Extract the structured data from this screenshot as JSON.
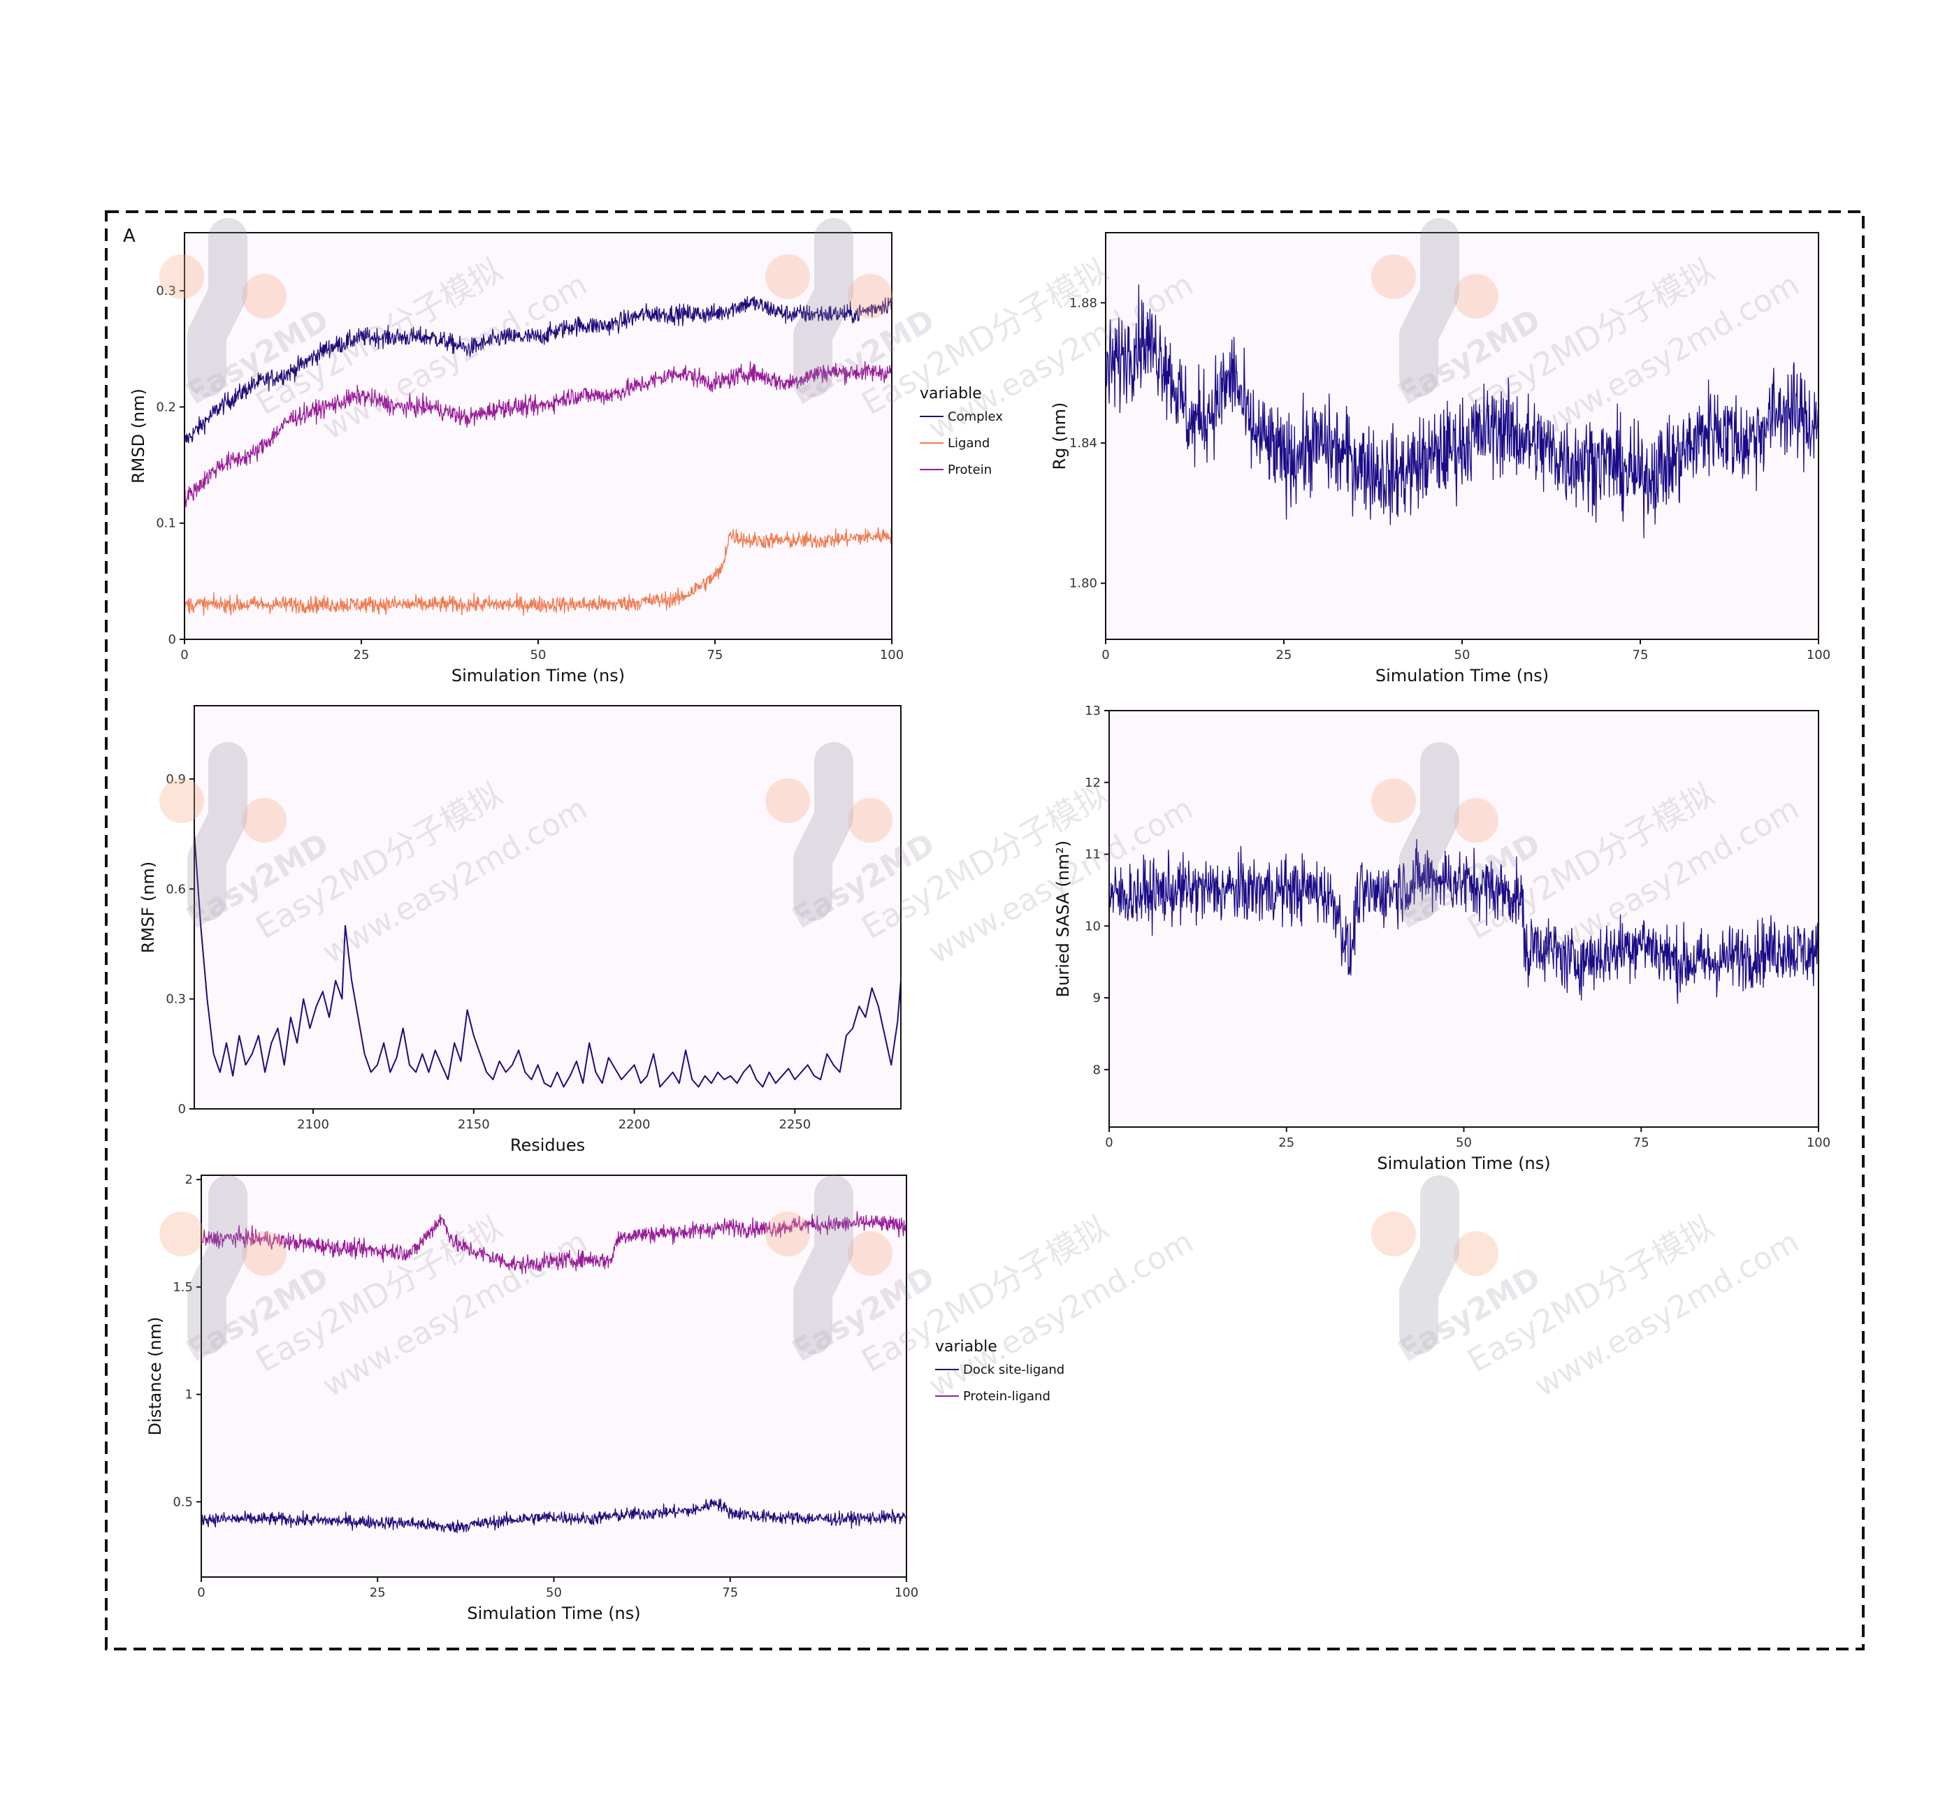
{
  "panel_label": "A",
  "watermark": {
    "brand": "Easy2MD",
    "line1": "Easy2MD分子模拟",
    "line2": "www.easy2md.com"
  },
  "colors": {
    "complex": "#1f0b7a",
    "ligand": "#f07a4e",
    "protein": "#9a1c9a",
    "series_main": "#1a0c86",
    "dashed_border": "#111111"
  },
  "chart_data": [
    {
      "id": "rmsd",
      "type": "line",
      "xlabel": "Simulation Time (ns)",
      "ylabel": "RMSD (nm)",
      "xlim": [
        0,
        100
      ],
      "ylim": [
        0,
        0.35
      ],
      "xticks": [
        0,
        25,
        50,
        75,
        100
      ],
      "yticks": [
        0,
        0.1,
        0.2,
        0.3
      ],
      "ytick_labels": [
        "0",
        "0.1",
        "0.2",
        "0.3"
      ],
      "legend": {
        "title": "variable",
        "placement": "right"
      },
      "series": [
        {
          "name": "Complex",
          "color": "#1f0b7a",
          "noise": 0.008,
          "x": [
            0,
            5,
            10,
            15,
            20,
            25,
            30,
            35,
            40,
            45,
            50,
            55,
            60,
            65,
            70,
            75,
            80,
            85,
            90,
            95,
            100
          ],
          "y": [
            0.17,
            0.2,
            0.22,
            0.23,
            0.25,
            0.26,
            0.26,
            0.26,
            0.25,
            0.26,
            0.26,
            0.27,
            0.27,
            0.28,
            0.28,
            0.28,
            0.29,
            0.28,
            0.28,
            0.28,
            0.29
          ]
        },
        {
          "name": "Ligand",
          "color": "#f07a4e",
          "noise": 0.007,
          "x": [
            0,
            10,
            20,
            30,
            40,
            50,
            60,
            70,
            74,
            76,
            77,
            80,
            90,
            100
          ],
          "y": [
            0.03,
            0.03,
            0.03,
            0.03,
            0.03,
            0.03,
            0.03,
            0.035,
            0.05,
            0.06,
            0.09,
            0.085,
            0.085,
            0.09
          ]
        },
        {
          "name": "Protein",
          "color": "#9a1c9a",
          "noise": 0.008,
          "x": [
            0,
            5,
            10,
            15,
            20,
            25,
            30,
            35,
            40,
            45,
            50,
            55,
            60,
            65,
            70,
            75,
            80,
            85,
            90,
            95,
            100
          ],
          "y": [
            0.12,
            0.15,
            0.16,
            0.19,
            0.2,
            0.21,
            0.2,
            0.2,
            0.19,
            0.2,
            0.2,
            0.21,
            0.21,
            0.22,
            0.23,
            0.22,
            0.23,
            0.22,
            0.23,
            0.23,
            0.23
          ]
        }
      ]
    },
    {
      "id": "rg",
      "type": "line",
      "xlabel": "Simulation Time (ns)",
      "ylabel": "Rg (nm)",
      "xlim": [
        0,
        100
      ],
      "ylim": [
        1.784,
        1.9
      ],
      "xticks": [
        0,
        25,
        50,
        75,
        100
      ],
      "yticks": [
        1.8,
        1.84,
        1.88
      ],
      "ytick_labels": [
        "1.80",
        "1.84",
        "1.88"
      ],
      "series": [
        {
          "name": "",
          "color": "#1a0c86",
          "noise": 0.013,
          "x": [
            0,
            5,
            8,
            12,
            15,
            18,
            20,
            25,
            30,
            35,
            40,
            45,
            50,
            55,
            60,
            65,
            70,
            75,
            80,
            85,
            90,
            95,
            100
          ],
          "y": [
            1.86,
            1.87,
            1.865,
            1.845,
            1.85,
            1.86,
            1.845,
            1.835,
            1.84,
            1.835,
            1.83,
            1.835,
            1.84,
            1.845,
            1.84,
            1.835,
            1.835,
            1.83,
            1.835,
            1.845,
            1.84,
            1.85,
            1.845
          ]
        }
      ]
    },
    {
      "id": "rmsf",
      "type": "line",
      "xlabel": "Residues",
      "ylabel": "RMSF (nm)",
      "xlim": [
        2063,
        2283
      ],
      "ylim": [
        0,
        1.1
      ],
      "xticks": [
        2100,
        2150,
        2200,
        2250
      ],
      "yticks": [
        0,
        0.3,
        0.6,
        0.9
      ],
      "ytick_labels": [
        "0",
        "0.3",
        "0.6",
        "0.9"
      ],
      "series": [
        {
          "name": "",
          "color": "#1f0b7a",
          "x": [
            2063,
            2065,
            2067,
            2069,
            2071,
            2073,
            2075,
            2077,
            2079,
            2081,
            2083,
            2085,
            2087,
            2089,
            2091,
            2093,
            2095,
            2097,
            2099,
            2101,
            2103,
            2105,
            2107,
            2109,
            2110,
            2112,
            2114,
            2116,
            2118,
            2120,
            2122,
            2124,
            2126,
            2128,
            2130,
            2132,
            2134,
            2136,
            2138,
            2140,
            2142,
            2144,
            2146,
            2148,
            2150,
            2152,
            2154,
            2156,
            2158,
            2160,
            2162,
            2164,
            2166,
            2168,
            2170,
            2172,
            2174,
            2176,
            2178,
            2180,
            2182,
            2184,
            2186,
            2188,
            2190,
            2192,
            2194,
            2196,
            2198,
            2200,
            2202,
            2204,
            2206,
            2208,
            2210,
            2212,
            2214,
            2216,
            2218,
            2220,
            2222,
            2224,
            2226,
            2228,
            2230,
            2232,
            2234,
            2236,
            2238,
            2240,
            2242,
            2244,
            2246,
            2248,
            2250,
            2252,
            2254,
            2256,
            2258,
            2260,
            2262,
            2264,
            2266,
            2268,
            2270,
            2272,
            2274,
            2276,
            2278,
            2280,
            2282,
            2283
          ],
          "y": [
            0.75,
            0.5,
            0.3,
            0.15,
            0.1,
            0.18,
            0.09,
            0.2,
            0.12,
            0.15,
            0.2,
            0.1,
            0.18,
            0.22,
            0.12,
            0.25,
            0.18,
            0.3,
            0.22,
            0.28,
            0.32,
            0.25,
            0.35,
            0.3,
            0.5,
            0.35,
            0.25,
            0.15,
            0.1,
            0.12,
            0.18,
            0.1,
            0.14,
            0.22,
            0.12,
            0.1,
            0.15,
            0.1,
            0.16,
            0.12,
            0.08,
            0.18,
            0.13,
            0.27,
            0.2,
            0.15,
            0.1,
            0.08,
            0.13,
            0.1,
            0.12,
            0.16,
            0.1,
            0.08,
            0.12,
            0.07,
            0.06,
            0.1,
            0.06,
            0.09,
            0.13,
            0.07,
            0.18,
            0.1,
            0.07,
            0.14,
            0.11,
            0.08,
            0.1,
            0.12,
            0.07,
            0.09,
            0.15,
            0.06,
            0.08,
            0.1,
            0.07,
            0.16,
            0.08,
            0.06,
            0.09,
            0.07,
            0.1,
            0.08,
            0.09,
            0.07,
            0.1,
            0.12,
            0.08,
            0.06,
            0.1,
            0.07,
            0.09,
            0.11,
            0.08,
            0.1,
            0.12,
            0.09,
            0.08,
            0.15,
            0.12,
            0.1,
            0.2,
            0.22,
            0.28,
            0.25,
            0.33,
            0.28,
            0.2,
            0.12,
            0.24,
            0.35
          ]
        }
      ]
    },
    {
      "id": "sasa",
      "type": "line",
      "xlabel": "Simulation Time (ns)",
      "ylabel": "Buried SASA (nm²)",
      "xlim": [
        0,
        100
      ],
      "ylim": [
        7.2,
        13
      ],
      "xticks": [
        0,
        25,
        50,
        75,
        100
      ],
      "yticks": [
        8,
        9,
        10,
        11,
        12,
        13
      ],
      "ytick_labels": [
        "8",
        "9",
        "10",
        "11",
        "12",
        "13"
      ],
      "series": [
        {
          "name": "",
          "color": "#1a0c86",
          "noise": 0.45,
          "x": [
            0,
            10,
            20,
            30,
            32,
            34,
            35,
            40,
            45,
            50,
            55,
            58,
            59,
            60,
            65,
            70,
            75,
            80,
            85,
            90,
            95,
            100
          ],
          "y": [
            10.4,
            10.5,
            10.5,
            10.5,
            10.3,
            9.5,
            10.4,
            10.5,
            10.7,
            10.6,
            10.5,
            10.4,
            9.5,
            9.8,
            9.5,
            9.6,
            9.8,
            9.5,
            9.5,
            9.6,
            9.7,
            9.6
          ]
        }
      ]
    },
    {
      "id": "distance",
      "type": "line",
      "xlabel": "Simulation Time (ns)",
      "ylabel": "Distance (nm)",
      "xlim": [
        0,
        100
      ],
      "ylim": [
        0.15,
        2.02
      ],
      "xticks": [
        0,
        25,
        50,
        75,
        100
      ],
      "yticks": [
        0.5,
        1,
        1.5,
        2
      ],
      "ytick_labels": [
        "0.5",
        "1",
        "1.5",
        "2"
      ],
      "legend": {
        "title": "variable",
        "placement": "right"
      },
      "series": [
        {
          "name": "Dock site-ligand",
          "color": "#1f0b7a",
          "noise": 0.03,
          "x": [
            0,
            10,
            20,
            30,
            35,
            40,
            45,
            50,
            55,
            60,
            65,
            70,
            73,
            75,
            80,
            90,
            100
          ],
          "y": [
            0.42,
            0.42,
            0.41,
            0.4,
            0.38,
            0.4,
            0.42,
            0.43,
            0.42,
            0.44,
            0.45,
            0.46,
            0.5,
            0.45,
            0.43,
            0.42,
            0.43
          ]
        },
        {
          "name": "Protein-ligand",
          "color": "#9a1c9a",
          "noise": 0.04,
          "x": [
            0,
            5,
            10,
            15,
            20,
            25,
            30,
            34,
            36,
            40,
            45,
            50,
            55,
            58,
            59,
            60,
            65,
            70,
            75,
            80,
            85,
            90,
            95,
            100
          ],
          "y": [
            1.72,
            1.73,
            1.72,
            1.7,
            1.68,
            1.67,
            1.66,
            1.82,
            1.7,
            1.65,
            1.6,
            1.62,
            1.63,
            1.62,
            1.72,
            1.74,
            1.75,
            1.76,
            1.78,
            1.77,
            1.79,
            1.79,
            1.8,
            1.78
          ]
        }
      ]
    }
  ]
}
